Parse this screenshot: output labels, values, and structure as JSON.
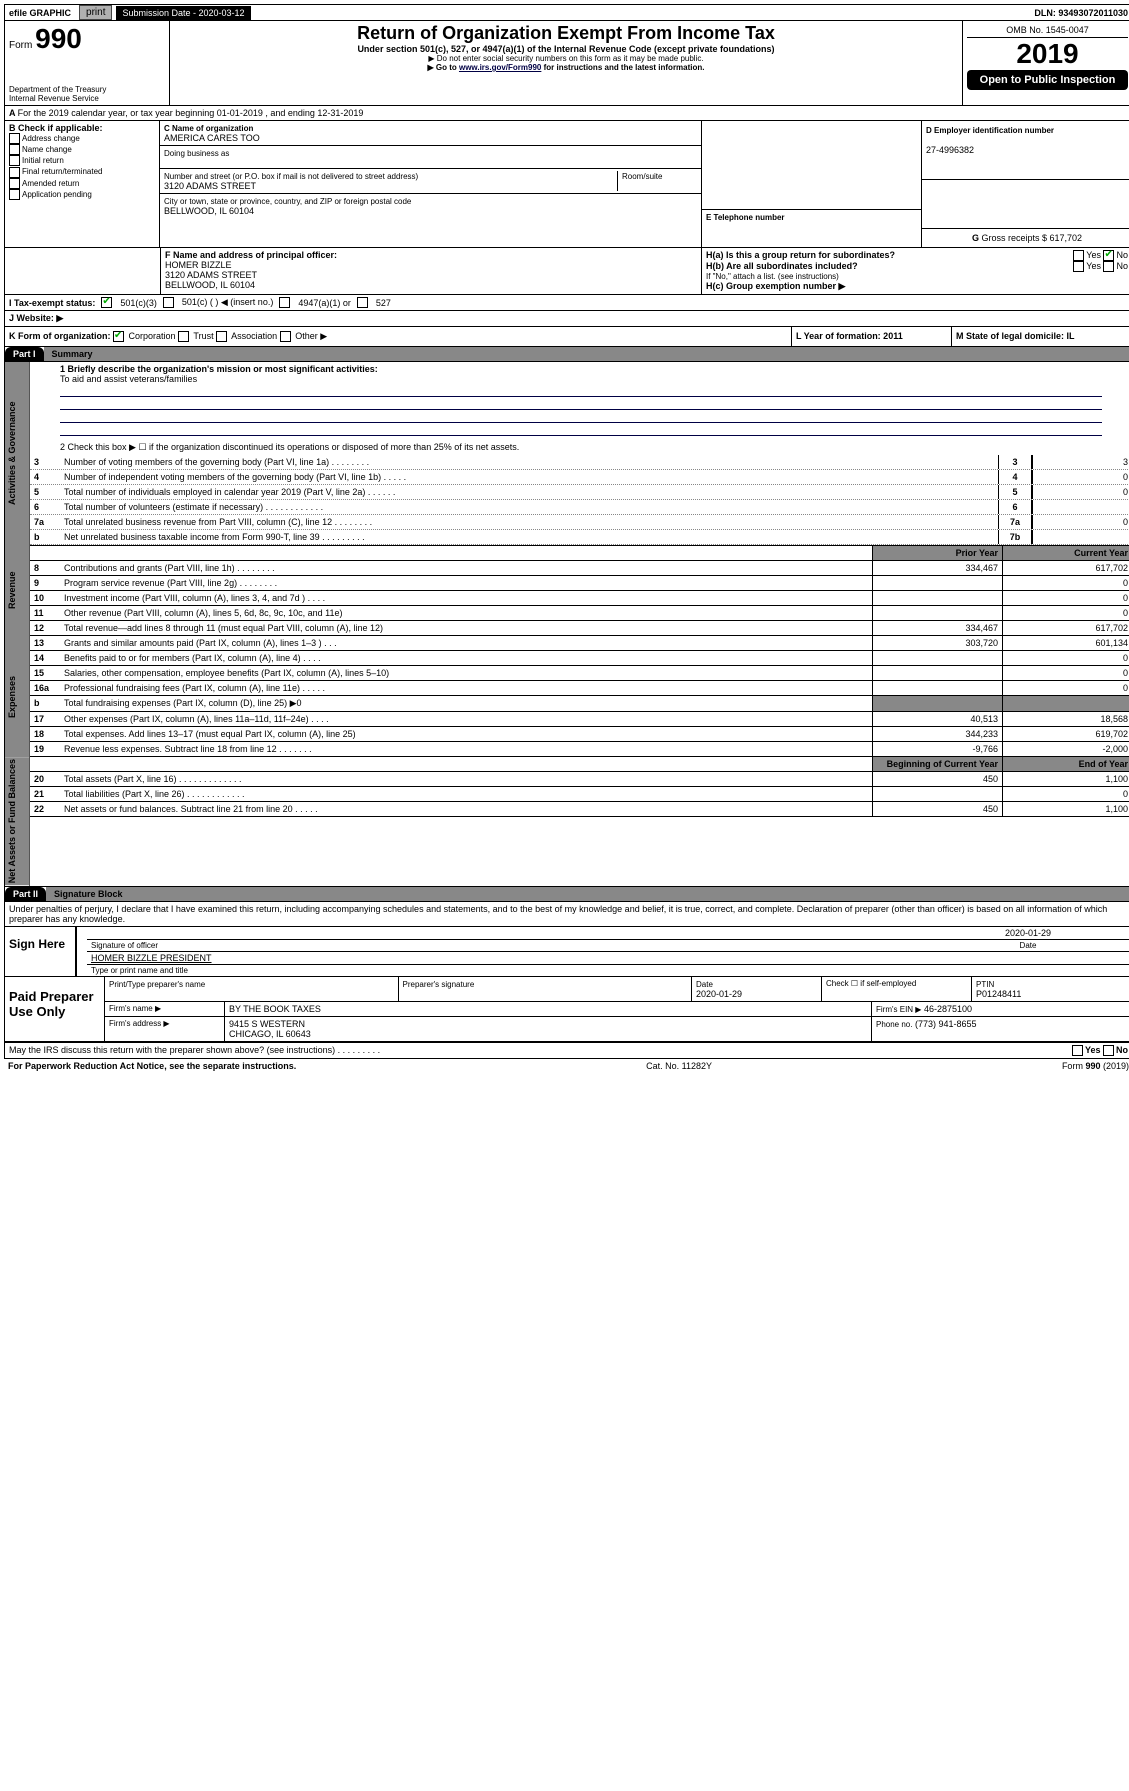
{
  "topbar": {
    "efile": "efile GRAPHIC",
    "print": "print",
    "sub_label": "Submission Date - 2020-03-12",
    "dln": "DLN: 93493072011030"
  },
  "header": {
    "form_word": "Form",
    "form_num": "990",
    "dept": "Department of the Treasury\nInternal Revenue Service",
    "title": "Return of Organization Exempt From Income Tax",
    "subtitle": "Under section 501(c), 527, or 4947(a)(1) of the Internal Revenue Code (except private foundations)",
    "note1": "▶ Do not enter social security numbers on this form as it may be made public.",
    "note2_a": "▶ Go to ",
    "note2_link": "www.irs.gov/Form990",
    "note2_b": " for instructions and the latest information.",
    "omb": "OMB No. 1545-0047",
    "year": "2019",
    "open": "Open to Public Inspection"
  },
  "A": "For the 2019 calendar year, or tax year beginning 01-01-2019   , and ending 12-31-2019",
  "B": {
    "label": "B Check if applicable:",
    "items": [
      "Address change",
      "Name change",
      "Initial return",
      "Final return/terminated",
      "Amended return",
      "Application pending"
    ]
  },
  "C": {
    "name_lbl": "C Name of organization",
    "name": "AMERICA CARES TOO",
    "dba_lbl": "Doing business as",
    "dba": "",
    "addr_lbl": "Number and street (or P.O. box if mail is not delivered to street address)",
    "room_lbl": "Room/suite",
    "addr": "3120 ADAMS STREET",
    "city_lbl": "City or town, state or province, country, and ZIP or foreign postal code",
    "city": "BELLWOOD, IL  60104"
  },
  "D": {
    "lbl": "D Employer identification number",
    "val": "27-4996382"
  },
  "E": {
    "lbl": "E Telephone number",
    "val": ""
  },
  "G": {
    "lbl": "G",
    "text": "Gross receipts $ 617,702"
  },
  "F": {
    "lbl": "F  Name and address of principal officer:",
    "name": "HOMER BIZZLE",
    "addr1": "3120 ADAMS STREET",
    "addr2": "BELLWOOD, IL  60104"
  },
  "H": {
    "a": "H(a)  Is this a group return for subordinates?",
    "a_yes": "Yes",
    "a_no": "No",
    "b": "H(b)  Are all subordinates included?",
    "b_yes": "Yes",
    "b_no": "No",
    "b_note": "If \"No,\" attach a list. (see instructions)",
    "c": "H(c)  Group exemption number ▶"
  },
  "I": {
    "lbl": "I     Tax-exempt status:",
    "opts": [
      "501(c)(3)",
      "501(c) (   ) ◀ (insert no.)",
      "4947(a)(1) or",
      "527"
    ]
  },
  "J": {
    "lbl": "J     Website: ▶",
    "val": ""
  },
  "K": {
    "lbl": "K Form of organization:",
    "opts": [
      "Corporation",
      "Trust",
      "Association",
      "Other ▶"
    ],
    "L": "L Year of formation: 2011",
    "M": "M State of legal domicile: IL"
  },
  "part1": {
    "tag": "Part I",
    "title": "Summary"
  },
  "gov": {
    "label": "Activities & Governance",
    "l1a": "1  Briefly describe the organization's mission or most significant activities:",
    "l1b": "To aid and assist veterans/families",
    "l2": "2   Check this box ▶ ☐  if the organization discontinued its operations or disposed of more than 25% of its net assets.",
    "rows": [
      {
        "n": "3",
        "t": "Number of voting members of the governing body (Part VI, line 1a)   .   .   .   .   .   .   .   .",
        "k": "3",
        "v": "3"
      },
      {
        "n": "4",
        "t": "Number of independent voting members of the governing body (Part VI, line 1b)   .   .   .   .   .",
        "k": "4",
        "v": "0"
      },
      {
        "n": "5",
        "t": "Total number of individuals employed in calendar year 2019 (Part V, line 2a)   .   .   .   .   .   .",
        "k": "5",
        "v": "0"
      },
      {
        "n": "6",
        "t": "Total number of volunteers (estimate if necessary)   .   .   .   .   .   .   .   .   .   .   .   .",
        "k": "6",
        "v": ""
      },
      {
        "n": "7a",
        "t": "Total unrelated business revenue from Part VIII, column (C), line 12   .   .   .   .   .   .   .   .",
        "k": "7a",
        "v": "0"
      },
      {
        "n": "b",
        "t": "Net unrelated business taxable income from Form 990-T, line 39   .   .   .   .   .   .   .   .   .",
        "k": "7b",
        "v": ""
      }
    ]
  },
  "hdr2": {
    "py": "Prior Year",
    "cy": "Current Year"
  },
  "rev": {
    "label": "Revenue",
    "rows": [
      {
        "n": "8",
        "t": "Contributions and grants (Part VIII, line 1h)   .   .   .   .   .   .   .   .",
        "py": "334,467",
        "cy": "617,702"
      },
      {
        "n": "9",
        "t": "Program service revenue (Part VIII, line 2g)   .   .   .   .   .   .   .   .",
        "py": "",
        "cy": "0"
      },
      {
        "n": "10",
        "t": "Investment income (Part VIII, column (A), lines 3, 4, and 7d )   .   .   .   .",
        "py": "",
        "cy": "0"
      },
      {
        "n": "11",
        "t": "Other revenue (Part VIII, column (A), lines 5, 6d, 8c, 9c, 10c, and 11e)",
        "py": "",
        "cy": "0"
      },
      {
        "n": "12",
        "t": "Total revenue—add lines 8 through 11 (must equal Part VIII, column (A), line 12)",
        "py": "334,467",
        "cy": "617,702"
      }
    ]
  },
  "exp": {
    "label": "Expenses",
    "rows": [
      {
        "n": "13",
        "t": "Grants and similar amounts paid (Part IX, column (A), lines 1–3 )   .   .   .",
        "py": "303,720",
        "cy": "601,134"
      },
      {
        "n": "14",
        "t": "Benefits paid to or for members (Part IX, column (A), line 4)   .   .   .   .",
        "py": "",
        "cy": "0"
      },
      {
        "n": "15",
        "t": "Salaries, other compensation, employee benefits (Part IX, column (A), lines 5–10)",
        "py": "",
        "cy": "0"
      },
      {
        "n": "16a",
        "t": "Professional fundraising fees (Part IX, column (A), line 11e)   .   .   .   .   .",
        "py": "",
        "cy": "0"
      },
      {
        "n": "b",
        "t": "Total fundraising expenses (Part IX, column (D), line 25) ▶0",
        "py": "—shade—",
        "cy": "—shade—"
      },
      {
        "n": "17",
        "t": "Other expenses (Part IX, column (A), lines 11a–11d, 11f–24e)   .   .   .   .",
        "py": "40,513",
        "cy": "18,568"
      },
      {
        "n": "18",
        "t": "Total expenses. Add lines 13–17 (must equal Part IX, column (A), line 25)",
        "py": "344,233",
        "cy": "619,702"
      },
      {
        "n": "19",
        "t": "Revenue less expenses. Subtract line 18 from line 12   .   .   .   .   .   .   .",
        "py": "-9,766",
        "cy": "-2,000"
      }
    ]
  },
  "hdr3": {
    "py": "Beginning of Current Year",
    "cy": "End of Year"
  },
  "net": {
    "label": "Net Assets or Fund Balances",
    "rows": [
      {
        "n": "20",
        "t": "Total assets (Part X, line 16)   .   .   .   .   .   .   .   .   .   .   .   .   .",
        "py": "450",
        "cy": "1,100"
      },
      {
        "n": "21",
        "t": "Total liabilities (Part X, line 26)   .   .   .   .   .   .   .   .   .   .   .   .",
        "py": "",
        "cy": "0"
      },
      {
        "n": "22",
        "t": "Net assets or fund balances. Subtract line 21 from line 20   .   .   .   .   .",
        "py": "450",
        "cy": "1,100"
      }
    ]
  },
  "part2": {
    "tag": "Part II",
    "title": "Signature Block"
  },
  "perjury": "Under penalties of perjury, I declare that I have examined this return, including accompanying schedules and statements, and to the best of my knowledge and belief, it is true, correct, and complete. Declaration of preparer (other than officer) is based on all information of which preparer has any knowledge.",
  "sign": {
    "here": "Sign Here",
    "sig_lbl": "Signature of officer",
    "date": "2020-01-29",
    "date_lbl": "Date",
    "name": "HOMER BIZZLE  PRESIDENT",
    "name_lbl": "Type or print name and title"
  },
  "paid": {
    "here": "Paid Preparer Use Only",
    "h1": "Print/Type preparer's name",
    "h2": "Preparer's signature",
    "h3": "Date",
    "d3": "2020-01-29",
    "h4a": "Check ☐ if self-employed",
    "h5a": "PTIN",
    "h5b": "P01248411",
    "firm_lbl": "Firm's name    ▶",
    "firm": "BY THE BOOK TAXES",
    "ein_lbl": "Firm's EIN ▶",
    "ein": "46-2875100",
    "addr_lbl": "Firm's address ▶",
    "addr1": "9415 S WESTERN",
    "addr2": "CHICAGO, IL  60643",
    "phone_lbl": "Phone no.",
    "phone": "(773) 941-8655"
  },
  "discuss": {
    "q": "May the IRS discuss this return with the preparer shown above? (see instructions)   .   .   .   .   .   .   .   .   .",
    "yes": "Yes",
    "no": "No"
  },
  "foot": {
    "l": "For Paperwork Reduction Act Notice, see the separate instructions.",
    "c": "Cat. No. 11282Y",
    "r": "Form 990 (2019)"
  }
}
